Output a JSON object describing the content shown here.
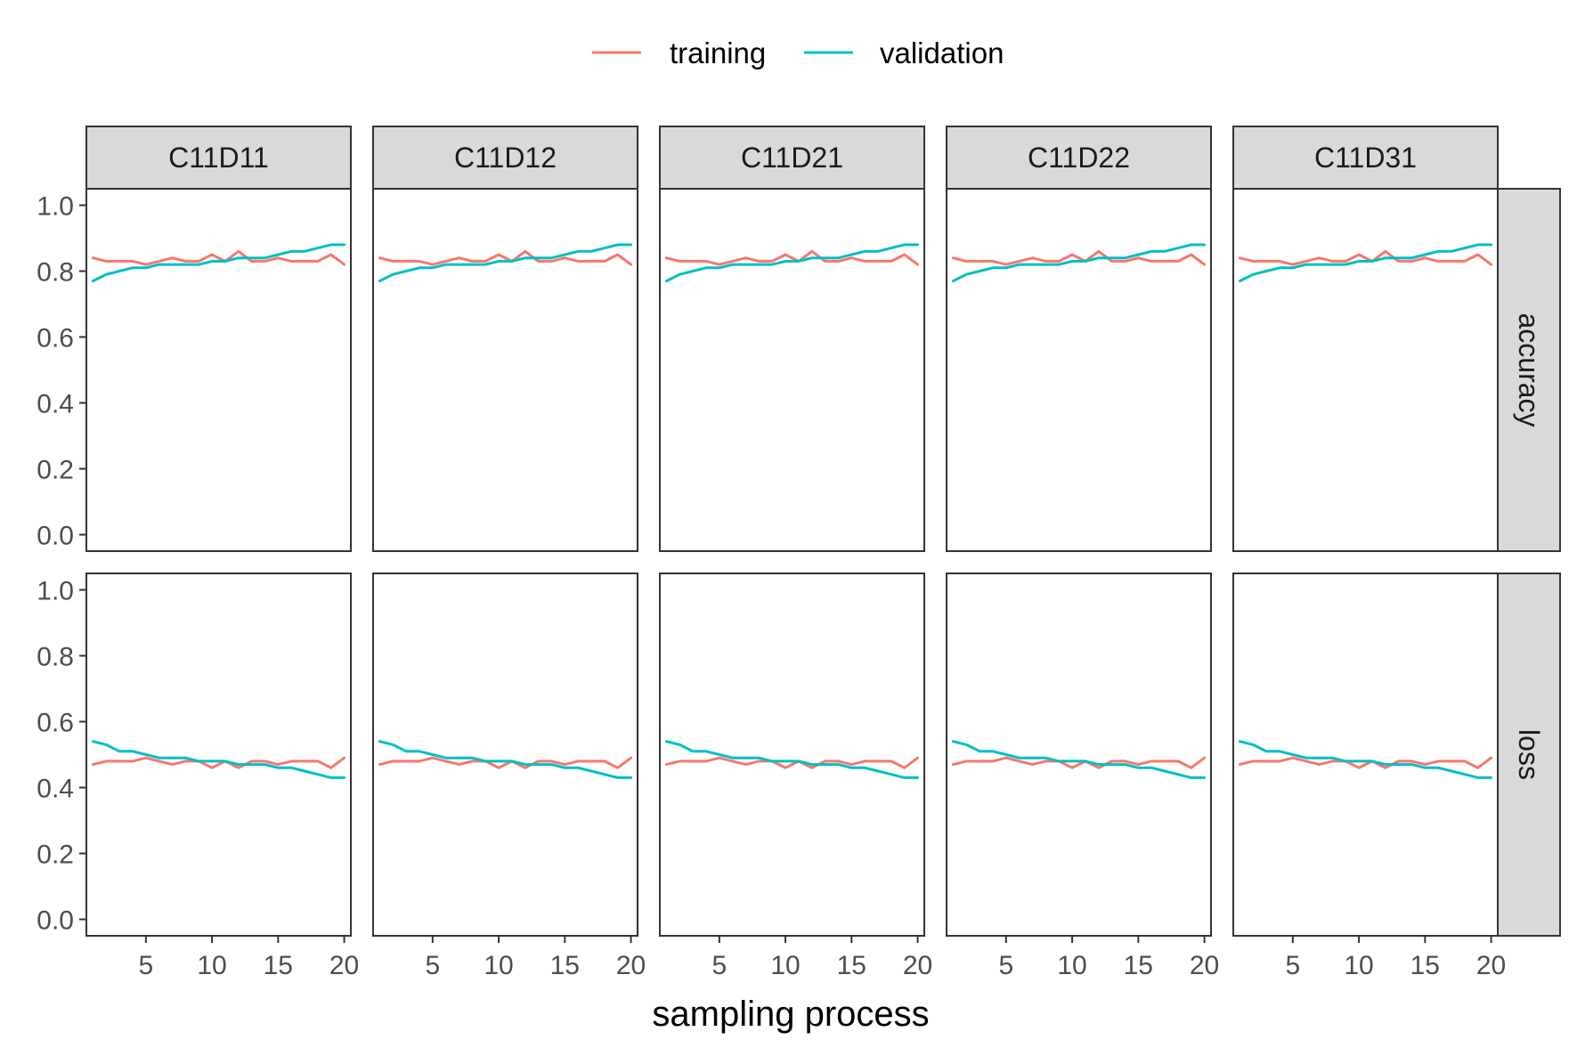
{
  "chart_data": {
    "type": "line",
    "xlabel": "sampling process",
    "ylabel": "",
    "xlim": [
      0.5,
      20.5
    ],
    "ylim": [
      -0.05,
      1.05
    ],
    "x_ticks": [
      5,
      10,
      15,
      20
    ],
    "y_ticks": [
      0.0,
      0.2,
      0.4,
      0.6,
      0.8,
      1.0
    ],
    "y_tick_labels": [
      "0.0",
      "0.2",
      "0.4",
      "0.6",
      "0.8",
      "1.0"
    ],
    "legend_position": "top",
    "columns": [
      "C11D11",
      "C11D12",
      "C11D21",
      "C11D22",
      "C11D31"
    ],
    "rows": [
      "accuracy",
      "loss"
    ],
    "x": [
      1,
      2,
      3,
      4,
      5,
      6,
      7,
      8,
      9,
      10,
      11,
      12,
      13,
      14,
      15,
      16,
      17,
      18,
      19,
      20
    ],
    "series_styles": [
      {
        "name": "training",
        "color": "#F8766D"
      },
      {
        "name": "validation",
        "color": "#00BFC4"
      }
    ],
    "panels": {
      "accuracy": {
        "training": [
          0.84,
          0.83,
          0.83,
          0.83,
          0.82,
          0.83,
          0.84,
          0.83,
          0.83,
          0.85,
          0.83,
          0.86,
          0.83,
          0.83,
          0.84,
          0.83,
          0.83,
          0.83,
          0.85,
          0.82
        ],
        "validation": [
          0.77,
          0.79,
          0.8,
          0.81,
          0.81,
          0.82,
          0.82,
          0.82,
          0.82,
          0.83,
          0.83,
          0.84,
          0.84,
          0.84,
          0.85,
          0.86,
          0.86,
          0.87,
          0.88,
          0.88
        ]
      },
      "loss": {
        "training": [
          0.47,
          0.48,
          0.48,
          0.48,
          0.49,
          0.48,
          0.47,
          0.48,
          0.48,
          0.46,
          0.48,
          0.46,
          0.48,
          0.48,
          0.47,
          0.48,
          0.48,
          0.48,
          0.46,
          0.49
        ],
        "validation": [
          0.54,
          0.53,
          0.51,
          0.51,
          0.5,
          0.49,
          0.49,
          0.49,
          0.48,
          0.48,
          0.48,
          0.47,
          0.47,
          0.47,
          0.46,
          0.46,
          0.45,
          0.44,
          0.43,
          0.43
        ]
      }
    }
  },
  "legend": {
    "items": [
      {
        "label": "training",
        "color": "#F8766D"
      },
      {
        "label": "validation",
        "color": "#00BFC4"
      }
    ]
  }
}
